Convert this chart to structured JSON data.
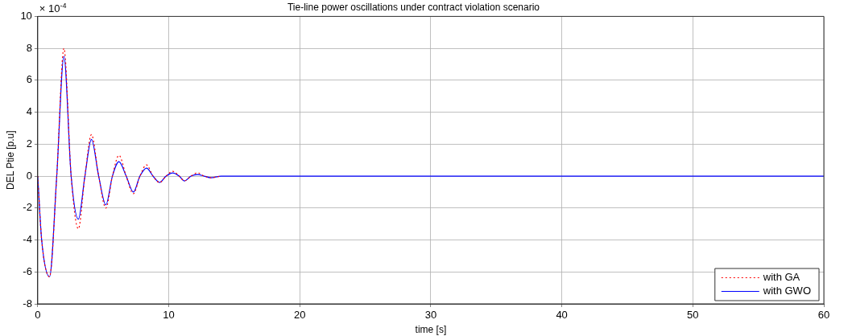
{
  "chart_data": {
    "type": "line",
    "title": "Tie-line power oscillations under contract violation scenario",
    "xlabel": "time [s]",
    "ylabel": "DEL Ptie [p.u]",
    "annotations": [
      "× 10$^{-4}$"
    ],
    "xlim": [
      0,
      60
    ],
    "xticks": [
      0,
      10,
      20,
      30,
      40,
      50,
      60
    ],
    "ylim": [
      -8,
      10
    ],
    "yticks": [
      -8,
      -6,
      -4,
      -2,
      0,
      2,
      4,
      6,
      8,
      10
    ],
    "grid": true,
    "legend": "bottom right",
    "marker": "none",
    "series": [
      {
        "name": "with GA",
        "color": "#ff0000",
        "line_style": "dotted",
        "x": [
          0,
          0.3,
          0.9,
          1.45,
          2.0,
          2.55,
          3.1,
          3.6,
          4.1,
          4.65,
          5.2,
          5.7,
          6.2,
          6.75,
          7.3,
          7.8,
          8.3,
          8.8,
          9.3,
          9.8,
          10.3,
          10.8,
          11.2,
          11.7,
          12.2,
          12.7,
          13.2,
          14
        ],
        "values": [
          0,
          -4,
          -6.3,
          0,
          8.0,
          0,
          -3.3,
          0,
          2.6,
          0,
          -2.0,
          0,
          1.3,
          0,
          -1.1,
          0,
          0.7,
          0,
          -0.4,
          0,
          0.3,
          0,
          -0.3,
          0,
          0.2,
          0,
          -0.1,
          0
        ]
      },
      {
        "name": "with GWO",
        "color": "#0000ff",
        "line_style": "solid",
        "x": [
          0,
          0.3,
          0.9,
          1.45,
          2.0,
          2.55,
          3.1,
          3.6,
          4.1,
          4.65,
          5.2,
          5.7,
          6.2,
          6.75,
          7.3,
          7.8,
          8.3,
          8.8,
          9.3,
          9.8,
          10.3,
          10.8,
          11.2,
          11.7,
          12.2,
          12.7,
          13.2,
          14,
          15,
          16,
          17,
          18,
          60
        ],
        "values": [
          0,
          -4,
          -6.3,
          0,
          7.5,
          0,
          -2.7,
          0,
          2.3,
          0,
          -1.8,
          0,
          0.9,
          0,
          -1.0,
          0,
          0.5,
          0,
          -0.4,
          0,
          0.2,
          0,
          -0.3,
          0,
          0.1,
          0,
          -0.1,
          0,
          0,
          0,
          0,
          0,
          0
        ]
      }
    ]
  }
}
